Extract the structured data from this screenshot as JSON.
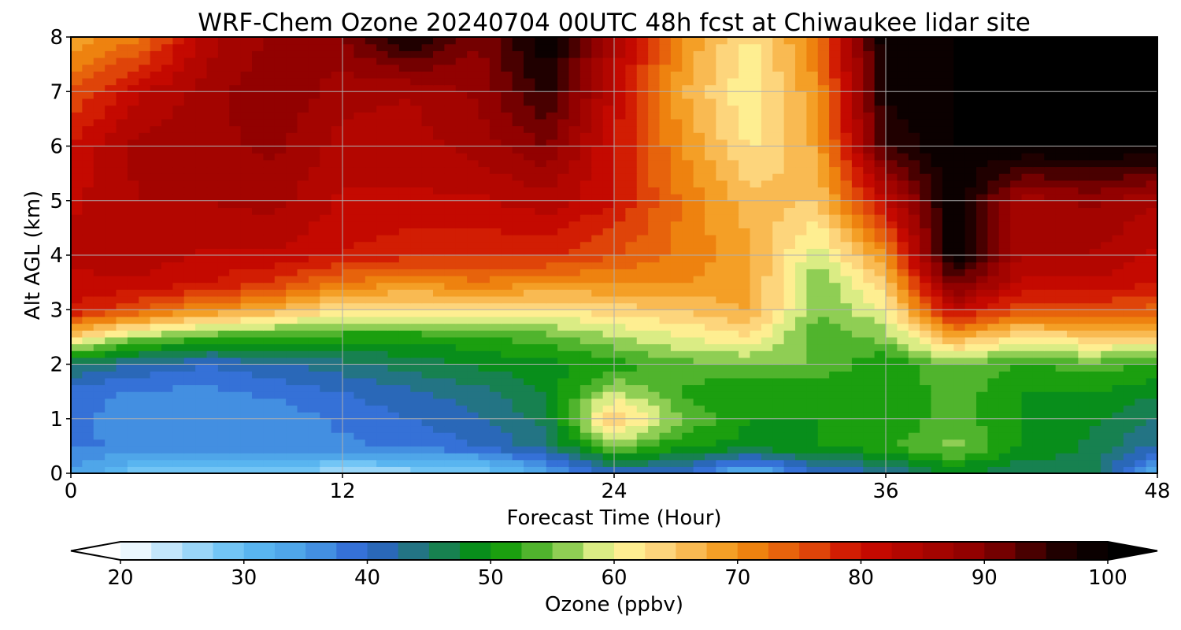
{
  "chart_data": {
    "type": "heatmap",
    "title": "WRF-Chem Ozone  20240704 00UTC 48h fcst at Chiwaukee lidar site",
    "xlabel": "Forecast Time (Hour)",
    "ylabel": "Alt AGL (km)",
    "xlim": [
      0,
      48
    ],
    "ylim": [
      0,
      8
    ],
    "xticks": [
      "0",
      "12",
      "24",
      "36",
      "48"
    ],
    "yticks": [
      "0",
      "1",
      "2",
      "3",
      "4",
      "5",
      "6",
      "7",
      "8"
    ],
    "grid": true,
    "x": [
      0,
      3,
      6,
      9,
      12,
      15,
      18,
      21,
      24,
      27,
      30,
      33,
      36,
      39,
      42,
      45,
      48
    ],
    "y": [
      0,
      0.5,
      1,
      1.5,
      2,
      2.5,
      3,
      3.5,
      4,
      5,
      6,
      7,
      8
    ],
    "values": [
      [
        35,
        28,
        28,
        28,
        25,
        26,
        27,
        33,
        40,
        40,
        30,
        40,
        42,
        48,
        45,
        46,
        32
      ],
      [
        38,
        37,
        37,
        37,
        37,
        38,
        40,
        44,
        56,
        50,
        49,
        50,
        52,
        56,
        50,
        47,
        42
      ],
      [
        38,
        36,
        35,
        36,
        38,
        40,
        42,
        46,
        66,
        55,
        50,
        50,
        50,
        54,
        50,
        48,
        45
      ],
      [
        39,
        37,
        37,
        38,
        40,
        42,
        44,
        48,
        58,
        52,
        50,
        50,
        50,
        54,
        50,
        50,
        48
      ],
      [
        45,
        42,
        40,
        42,
        44,
        46,
        48,
        49,
        51,
        54,
        55,
        55,
        50,
        55,
        52,
        54,
        52
      ],
      [
        64,
        56,
        53,
        52,
        51,
        51,
        52,
        54,
        57,
        60,
        62,
        53,
        56,
        68,
        62,
        64,
        64
      ],
      [
        80,
        75,
        70,
        67,
        62,
        62,
        63,
        62,
        64,
        65,
        68,
        55,
        60,
        82,
        75,
        76,
        74
      ],
      [
        82,
        82,
        80,
        77,
        72,
        70,
        72,
        70,
        70,
        70,
        68,
        55,
        65,
        92,
        82,
        82,
        80
      ],
      [
        83,
        84,
        82,
        82,
        80,
        78,
        78,
        78,
        75,
        72,
        68,
        58,
        70,
        100,
        85,
        85,
        82
      ],
      [
        82,
        85,
        85,
        86,
        82,
        82,
        82,
        84,
        80,
        72,
        66,
        65,
        82,
        100,
        86,
        88,
        85
      ],
      [
        80,
        86,
        87,
        88,
        84,
        84,
        86,
        90,
        80,
        70,
        62,
        68,
        95,
        100,
        100,
        100,
        100
      ],
      [
        75,
        82,
        86,
        90,
        86,
        85,
        88,
        96,
        82,
        68,
        60,
        70,
        98,
        100,
        100,
        100,
        100
      ],
      [
        68,
        72,
        84,
        88,
        90,
        98,
        90,
        100,
        85,
        70,
        62,
        72,
        100,
        100,
        100,
        100,
        100
      ]
    ],
    "colorbar": {
      "label": "Ozone  (ppbv)",
      "min": 20,
      "max": 100,
      "ticks": [
        "20",
        "30",
        "40",
        "50",
        "60",
        "70",
        "80",
        "90",
        "100"
      ],
      "extend": "both"
    },
    "colormap": [
      {
        "v": 20,
        "c": "#ffffff"
      },
      {
        "v": 30,
        "c": "#5ebdf3"
      },
      {
        "v": 35,
        "c": "#4a9ee6"
      },
      {
        "v": 40,
        "c": "#2e62d2"
      },
      {
        "v": 45,
        "c": "#1f7a6a"
      },
      {
        "v": 50,
        "c": "#009400"
      },
      {
        "v": 55,
        "c": "#6abf3c"
      },
      {
        "v": 60,
        "c": "#fffb9c"
      },
      {
        "v": 64,
        "c": "#fdd27a"
      },
      {
        "v": 70,
        "c": "#f29110"
      },
      {
        "v": 76,
        "c": "#e0480a"
      },
      {
        "v": 80,
        "c": "#cc0a00"
      },
      {
        "v": 90,
        "c": "#8a0000"
      },
      {
        "v": 96,
        "c": "#220000"
      },
      {
        "v": 100,
        "c": "#000000"
      }
    ]
  }
}
